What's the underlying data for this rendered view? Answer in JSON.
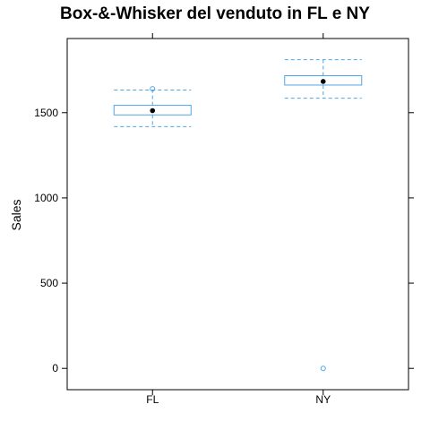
{
  "chart_data": {
    "type": "box",
    "title": "Box-&-Whisker del venduto in FL e NY",
    "xlabel": "",
    "ylabel": "Sales",
    "ylim": [
      -125,
      1935
    ],
    "yticks": [
      0,
      500,
      1000,
      1500
    ],
    "categories": [
      "FL",
      "NY"
    ],
    "boxes": [
      {
        "category": "FL",
        "whisker_low": 1418,
        "q1": 1487,
        "median": 1512,
        "q3": 1543,
        "whisker_high": 1633,
        "outliers": [
          1640
        ]
      },
      {
        "category": "NY",
        "whisker_low": 1585,
        "q1": 1662,
        "median": 1683,
        "q3": 1717,
        "whisker_high": 1811,
        "outliers": [
          0
        ]
      }
    ],
    "grid": false,
    "legend": "none",
    "colors": {
      "box": "#4ea5e6",
      "median": "#000000",
      "frame": "#000000"
    }
  }
}
